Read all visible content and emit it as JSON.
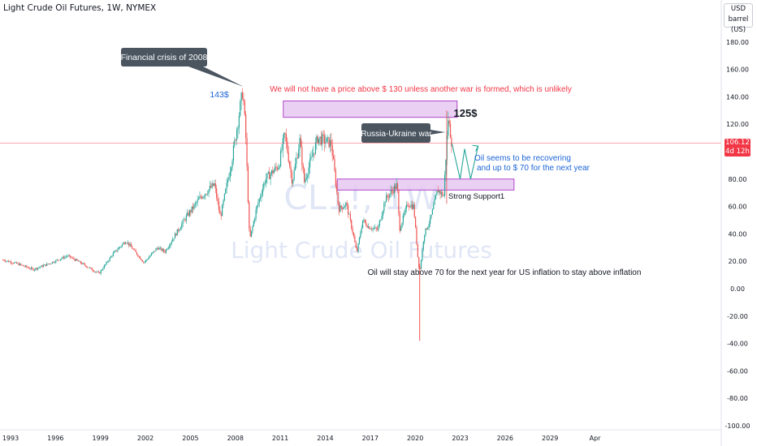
{
  "header": {
    "title": "Light Crude Oil Futures, 1W, NYMEX"
  },
  "unit": {
    "currency": "USD",
    "unit": "barrel (US)"
  },
  "price_tag": {
    "price": "106.12",
    "countdown": "4d 12h"
  },
  "watermark": {
    "symbol": "CL1!, 1W",
    "name": "Light Crude Oil Futures"
  },
  "colors": {
    "up": "#26a69a",
    "down": "#ef5350",
    "red_text": "#f23645",
    "blue_text": "#1e66d6",
    "zone_fill": "#e6c8f0",
    "zone_stroke": "#a020c0",
    "callout": "#4a5560"
  },
  "annotations": {
    "crisis_label": "Financial crisis of 2008",
    "peak_label": "143$",
    "top_note": "We will not have a price above $ 130 unless another war is formed, which is unlikely",
    "level_125": "125$",
    "war_label": "Russia-Ukraine war",
    "recovery_line1": "Oil seems to be recovering",
    "recovery_line2": "and up to $ 70 for the next year",
    "support_label": "Strong Support1",
    "bottom_note": "Oil will stay above 70 for the next year for US inflation to stay above inflation"
  },
  "chart_data": {
    "type": "candlestick",
    "title": "Light Crude Oil Futures, 1W, NYMEX",
    "y_ticks": [
      180,
      160,
      140,
      120,
      100,
      80,
      60,
      40,
      20,
      0,
      -20,
      -40,
      -60,
      -80,
      -100
    ],
    "ylim": [
      -100,
      190
    ],
    "x_ticks": [
      "1993",
      "1996",
      "1999",
      "2002",
      "2005",
      "2008",
      "2011",
      "2014",
      "2017",
      "2020",
      "2023",
      "2026",
      "2029",
      "Apr"
    ],
    "last_price": 106.12,
    "price_path": [
      [
        1992.5,
        21
      ],
      [
        1993.5,
        18
      ],
      [
        1994.5,
        14
      ],
      [
        1995.5,
        18
      ],
      [
        1996.8,
        24
      ],
      [
        1997.5,
        20
      ],
      [
        1998.9,
        11
      ],
      [
        1999.8,
        25
      ],
      [
        2000.7,
        35
      ],
      [
        2001.9,
        19
      ],
      [
        2002.8,
        30
      ],
      [
        2003.3,
        27
      ],
      [
        2004.7,
        52
      ],
      [
        2005.7,
        67
      ],
      [
        2006.6,
        76
      ],
      [
        2007.0,
        52
      ],
      [
        2007.8,
        96
      ],
      [
        2008.5,
        145
      ],
      [
        2008.7,
        110
      ],
      [
        2008.95,
        35
      ],
      [
        2009.4,
        58
      ],
      [
        2010.0,
        80
      ],
      [
        2010.9,
        90
      ],
      [
        2011.3,
        113
      ],
      [
        2011.8,
        78
      ],
      [
        2012.3,
        108
      ],
      [
        2012.6,
        78
      ],
      [
        2013.5,
        110
      ],
      [
        2014.4,
        106
      ],
      [
        2014.9,
        58
      ],
      [
        2015.4,
        62
      ],
      [
        2015.9,
        38
      ],
      [
        2016.1,
        26
      ],
      [
        2016.5,
        50
      ],
      [
        2016.9,
        45
      ],
      [
        2017.5,
        43
      ],
      [
        2018.0,
        65
      ],
      [
        2018.8,
        76
      ],
      [
        2018.95,
        43
      ],
      [
        2019.5,
        62
      ],
      [
        2019.9,
        60
      ],
      [
        2020.2,
        20
      ],
      [
        2020.3,
        12
      ],
      [
        2020.6,
        40
      ],
      [
        2021.0,
        50
      ],
      [
        2021.5,
        72
      ],
      [
        2021.9,
        68
      ],
      [
        2022.2,
        124
      ],
      [
        2022.45,
        106
      ]
    ],
    "projection": [
      [
        2022.45,
        106
      ],
      [
        2023.0,
        80
      ],
      [
        2023.3,
        102
      ],
      [
        2023.7,
        80
      ],
      [
        2024.2,
        104
      ]
    ],
    "spike_range": [
      2020.3,
      -38,
      18
    ],
    "zones": [
      {
        "label": "resistance",
        "x": [
          2011.2,
          2022.8
        ],
        "y": [
          125,
          137
        ]
      },
      {
        "label": "support",
        "x": [
          2014.8,
          2026.6
        ],
        "y": [
          72,
          80
        ]
      }
    ],
    "horizontal_line": 106.12,
    "vertical_marker_2022": 2022.1,
    "grid": false
  }
}
